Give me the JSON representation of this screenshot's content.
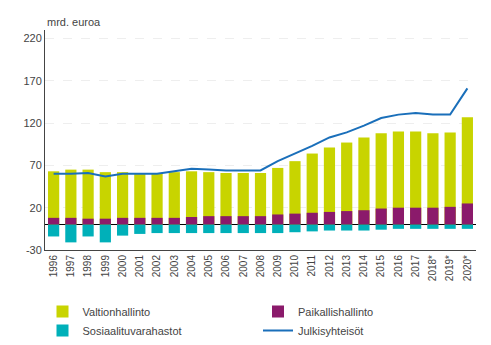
{
  "chart_data": {
    "type": "bar",
    "ylabel": "mrd. euroa",
    "categories": [
      "1996",
      "1997",
      "1998",
      "1999",
      "2000",
      "2001",
      "2002",
      "2003",
      "2004",
      "2005",
      "2006",
      "2007",
      "2008",
      "2009",
      "2010",
      "2011",
      "2012",
      "2013",
      "2014",
      "2015",
      "2016",
      "2017",
      "2018*",
      "2019*",
      "2020*"
    ],
    "series": [
      {
        "name": "Valtionhallinto",
        "type": "bar",
        "color": "#c8d400",
        "values": [
          63,
          65,
          65,
          62,
          62,
          61,
          61,
          62,
          63,
          62,
          61,
          61,
          61,
          67,
          75,
          84,
          91,
          97,
          103,
          108,
          110,
          110,
          108,
          109,
          127
        ]
      },
      {
        "name": "Paikallishallinto",
        "type": "bar",
        "color": "#8b1a6b",
        "values": [
          8,
          8,
          7,
          7,
          8,
          8,
          8,
          8,
          9,
          10,
          10,
          10,
          10,
          12,
          13,
          14,
          15,
          16,
          17,
          19,
          20,
          20,
          20,
          21,
          25
        ]
      },
      {
        "name": "Sosiaalituvarahastot",
        "type": "bar",
        "color": "#00b0b9",
        "values": [
          -14,
          -21,
          -14,
          -21,
          -13,
          -11,
          -10,
          -10,
          -10,
          -10,
          -10,
          -10,
          -10,
          -10,
          -9,
          -8,
          -7,
          -7,
          -7,
          -6,
          -5,
          -5,
          -5,
          -5,
          -5
        ]
      },
      {
        "name": "Julkisyhteisöt",
        "type": "line",
        "color": "#1a6fba",
        "values": [
          60,
          60,
          61,
          57,
          60,
          60,
          60,
          63,
          66,
          65,
          64,
          64,
          64,
          75,
          84,
          93,
          103,
          109,
          117,
          126,
          130,
          132,
          130,
          130,
          161
        ]
      }
    ],
    "ylim": [
      -30,
      230
    ],
    "yticks": [
      -30,
      20,
      70,
      120,
      170,
      220
    ],
    "stacked": false,
    "grid": true,
    "legend": "bottom"
  }
}
